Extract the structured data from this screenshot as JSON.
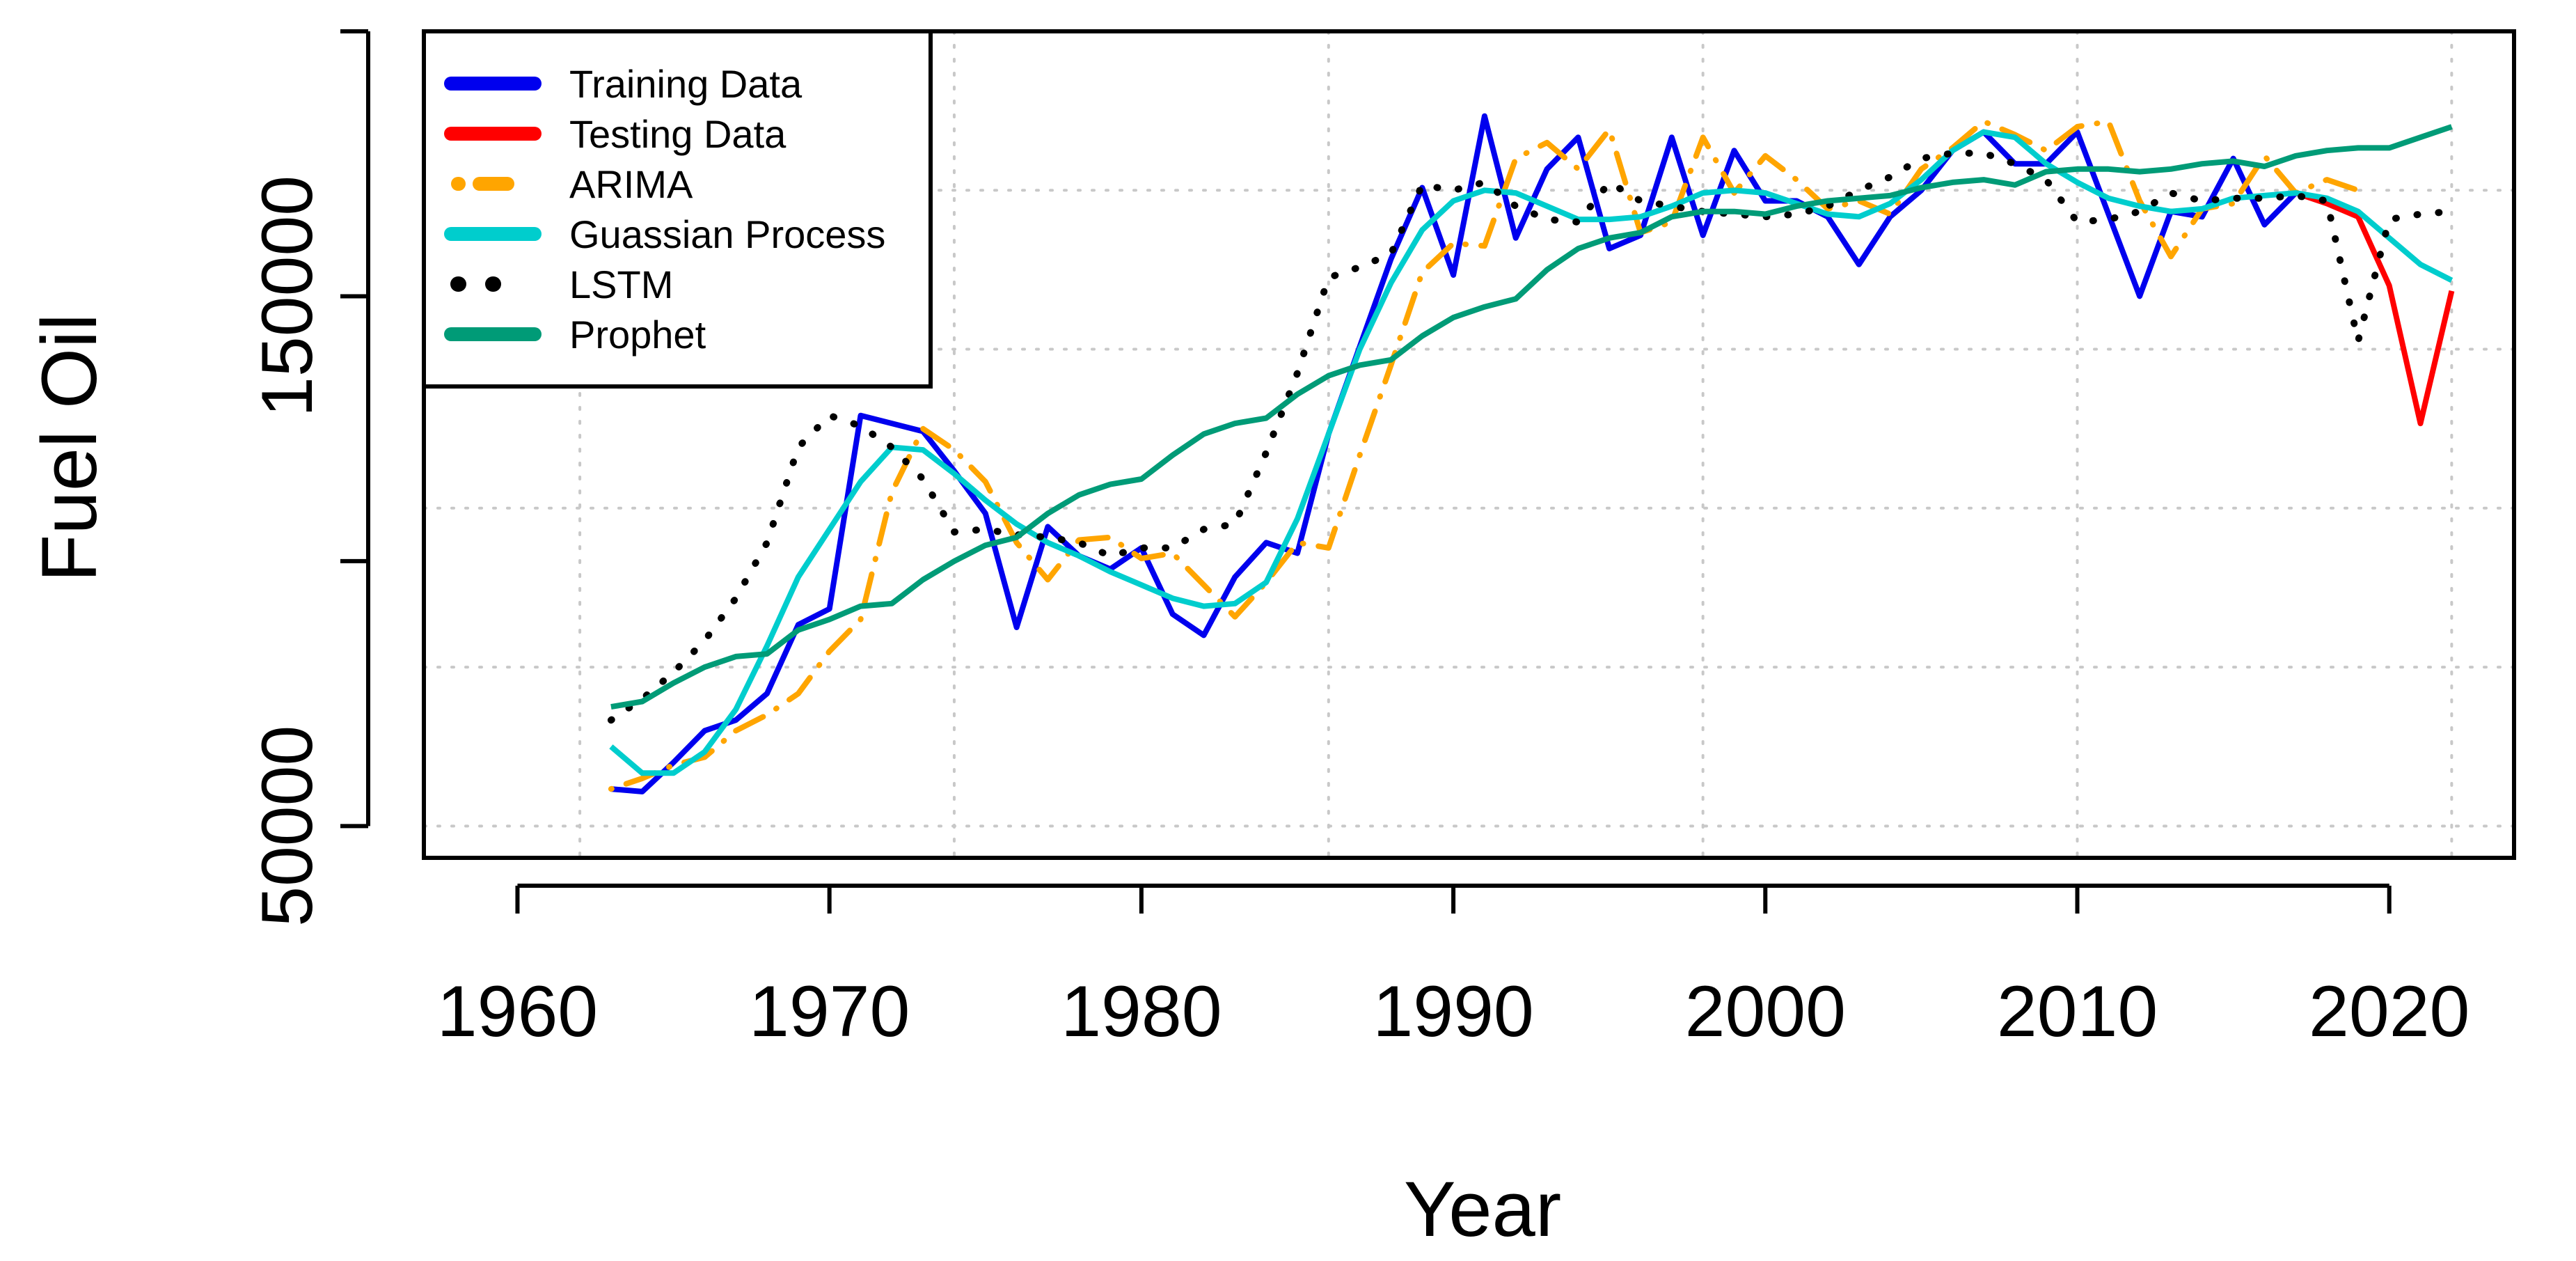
{
  "chart_data": {
    "type": "line",
    "title": "",
    "xlabel": "Year",
    "ylabel": "Fuel Oil",
    "xlim": [
      1957,
      2024
    ],
    "ylim": [
      44000,
      200000
    ],
    "xticks": [
      1960,
      1970,
      1980,
      1990,
      2000,
      2010,
      2020
    ],
    "xtick_labels": [
      "1960",
      "1970",
      "1980",
      "1990",
      "2000",
      "2010",
      "2020"
    ],
    "yticks": [
      50000,
      100000,
      150000,
      200000
    ],
    "ytick_labels": [
      "50000",
      "",
      "150000",
      ""
    ],
    "grid": true,
    "grid_x": [
      1962,
      1974,
      1986,
      1998,
      2010,
      2022
    ],
    "grid_y": [
      50000,
      80000,
      110000,
      140000,
      170000,
      200000
    ],
    "legend_position": "top-left",
    "series": [
      {
        "name": "Training Data",
        "color": "#0000ee",
        "style": "solid",
        "x": [
          1963,
          1964,
          1965,
          1966,
          1967,
          1968,
          1969,
          1970,
          1971,
          1972,
          1973,
          1974,
          1975,
          1976,
          1977,
          1978,
          1979,
          1980,
          1981,
          1982,
          1983,
          1984,
          1985,
          1986,
          1987,
          1988,
          1989,
          1990,
          1991,
          1992,
          1993,
          1994,
          1995,
          1996,
          1997,
          1998,
          1999,
          2000,
          2001,
          2002,
          2003,
          2004,
          2005,
          2006,
          2007,
          2008,
          2009,
          2010,
          2011,
          2012,
          2013,
          2014,
          2015,
          2016,
          2017
        ],
        "values": [
          57000,
          56500,
          62000,
          68000,
          70000,
          75000,
          88000,
          91000,
          127500,
          126000,
          124500,
          117000,
          109000,
          87500,
          106500,
          101000,
          98500,
          102500,
          90000,
          86000,
          97000,
          103500,
          101500,
          124000,
          140500,
          157000,
          170500,
          154000,
          184000,
          161000,
          174000,
          180000,
          159000,
          161500,
          180000,
          161500,
          177500,
          168000,
          168000,
          165000,
          156000,
          165000,
          170000,
          177500,
          181000,
          175000,
          175000,
          181000,
          165500,
          150000,
          166000,
          165000,
          176000,
          163500,
          169500
        ]
      },
      {
        "name": "Testing Data",
        "color": "#ff0000",
        "style": "solid",
        "x": [
          2017,
          2018,
          2019,
          2020,
          2021,
          2022
        ],
        "values": [
          169500,
          167500,
          165000,
          152000,
          126000,
          151000
        ]
      },
      {
        "name": "ARIMA",
        "color": "#ffa500",
        "style": "dotdash",
        "x": [
          1963,
          1964,
          1965,
          1966,
          1967,
          1968,
          1969,
          1970,
          1971,
          1972,
          1973,
          1974,
          1975,
          1976,
          1977,
          1978,
          1979,
          1980,
          1981,
          1982,
          1983,
          1984,
          1985,
          1986,
          1987,
          1988,
          1989,
          1990,
          1991,
          1992,
          1993,
          1994,
          1995,
          1996,
          1997,
          1998,
          1999,
          2000,
          2001,
          2002,
          2003,
          2004,
          2005,
          2006,
          2007,
          2008,
          2009,
          2010,
          2011,
          2012,
          2013,
          2014,
          2015,
          2016,
          2017,
          2018,
          2019
        ],
        "values": [
          57000,
          59000,
          61500,
          63000,
          68000,
          71000,
          75000,
          83000,
          89000,
          113000,
          125000,
          121000,
          115000,
          103500,
          96500,
          104000,
          104500,
          100500,
          101500,
          95500,
          89500,
          96000,
          103500,
          102500,
          120000,
          137000,
          154500,
          160000,
          159500,
          176000,
          179000,
          174000,
          181500,
          162000,
          164000,
          180000,
          169500,
          176500,
          172000,
          166500,
          168000,
          165500,
          174000,
          178000,
          183000,
          180500,
          177500,
          182000,
          183000,
          168000,
          157500,
          166500,
          167500,
          176500,
          169500,
          172000,
          170000
        ]
      },
      {
        "name": "Guassian Process",
        "color": "#00cdcd",
        "style": "solid",
        "x": [
          1963,
          1964,
          1965,
          1966,
          1967,
          1968,
          1969,
          1970,
          1971,
          1972,
          1973,
          1974,
          1975,
          1976,
          1977,
          1978,
          1979,
          1980,
          1981,
          1982,
          1983,
          1984,
          1985,
          1986,
          1987,
          1988,
          1989,
          1990,
          1991,
          1992,
          1993,
          1994,
          1995,
          1996,
          1997,
          1998,
          1999,
          2000,
          2001,
          2002,
          2003,
          2004,
          2005,
          2006,
          2007,
          2008,
          2009,
          2010,
          2011,
          2012,
          2013,
          2014,
          2015,
          2016,
          2017,
          2018,
          2019,
          2020,
          2021,
          2022
        ],
        "values": [
          65000,
          60000,
          60000,
          64000,
          72000,
          84000,
          97000,
          106000,
          115000,
          121500,
          121000,
          116500,
          111500,
          107000,
          103500,
          101000,
          98000,
          95500,
          93000,
          91500,
          92000,
          96000,
          108000,
          124000,
          140000,
          152500,
          162500,
          168000,
          170000,
          169500,
          167000,
          164500,
          164500,
          165000,
          167000,
          169500,
          170000,
          169500,
          167500,
          165500,
          165000,
          167500,
          172000,
          177500,
          181000,
          180000,
          175000,
          171500,
          168500,
          167000,
          166000,
          166500,
          168500,
          169000,
          169500,
          168500,
          166000,
          161000,
          156000,
          153000
        ]
      },
      {
        "name": "LSTM",
        "color": "#000000",
        "style": "dotted",
        "x": [
          1963,
          1964,
          1965,
          1966,
          1967,
          1968,
          1969,
          1970,
          1971,
          1972,
          1973,
          1974,
          1975,
          1976,
          1977,
          1978,
          1979,
          1980,
          1981,
          1982,
          1983,
          1984,
          1985,
          1986,
          1987,
          1988,
          1989,
          1990,
          1991,
          1992,
          1993,
          1994,
          1995,
          1996,
          1997,
          1998,
          1999,
          2000,
          2001,
          2002,
          2003,
          2004,
          2005,
          2006,
          2007,
          2008,
          2009,
          2010,
          2011,
          2012,
          2013,
          2014,
          2015,
          2016,
          2017,
          2018,
          2019,
          2020,
          2021,
          2022
        ],
        "values": [
          70000,
          74000,
          79000,
          85000,
          93000,
          103500,
          121500,
          127500,
          125500,
          121500,
          115500,
          105500,
          106000,
          105000,
          104500,
          103500,
          101000,
          102500,
          102500,
          106000,
          107000,
          120500,
          135500,
          153500,
          155500,
          158000,
          171000,
          170000,
          171500,
          167000,
          164500,
          164000,
          171500,
          168000,
          167000,
          166000,
          165500,
          165000,
          165500,
          167000,
          170000,
          172500,
          176000,
          177000,
          177000,
          175000,
          172000,
          164000,
          164500,
          166000,
          169500,
          168000,
          168500,
          168500,
          169000,
          168000,
          141500,
          164500,
          165500,
          166000
        ]
      },
      {
        "name": "Prophet",
        "color": "#009b77",
        "style": "solid",
        "x": [
          1963,
          1964,
          1965,
          1966,
          1967,
          1968,
          1969,
          1970,
          1971,
          1972,
          1973,
          1974,
          1975,
          1976,
          1977,
          1978,
          1979,
          1980,
          1981,
          1982,
          1983,
          1984,
          1985,
          1986,
          1987,
          1988,
          1989,
          1990,
          1991,
          1992,
          1993,
          1994,
          1995,
          1996,
          1997,
          1998,
          1999,
          2000,
          2001,
          2002,
          2003,
          2004,
          2005,
          2006,
          2007,
          2008,
          2009,
          2010,
          2011,
          2012,
          2013,
          2014,
          2015,
          2016,
          2017,
          2018,
          2019,
          2020,
          2021,
          2022
        ],
        "values": [
          72500,
          73500,
          77000,
          80000,
          82000,
          82500,
          87000,
          89000,
          91500,
          92000,
          96500,
          100000,
          103000,
          104500,
          109000,
          112500,
          114500,
          115500,
          120000,
          124000,
          126000,
          127000,
          131500,
          135000,
          137000,
          138000,
          142500,
          146000,
          148000,
          149500,
          155000,
          159000,
          161000,
          162000,
          165000,
          166000,
          166000,
          165500,
          167000,
          168000,
          168500,
          169000,
          170500,
          171500,
          172000,
          171000,
          173500,
          174000,
          174000,
          173500,
          174000,
          175000,
          175500,
          174500,
          176500,
          177500,
          178000,
          178000,
          180000,
          182000
        ]
      }
    ]
  }
}
